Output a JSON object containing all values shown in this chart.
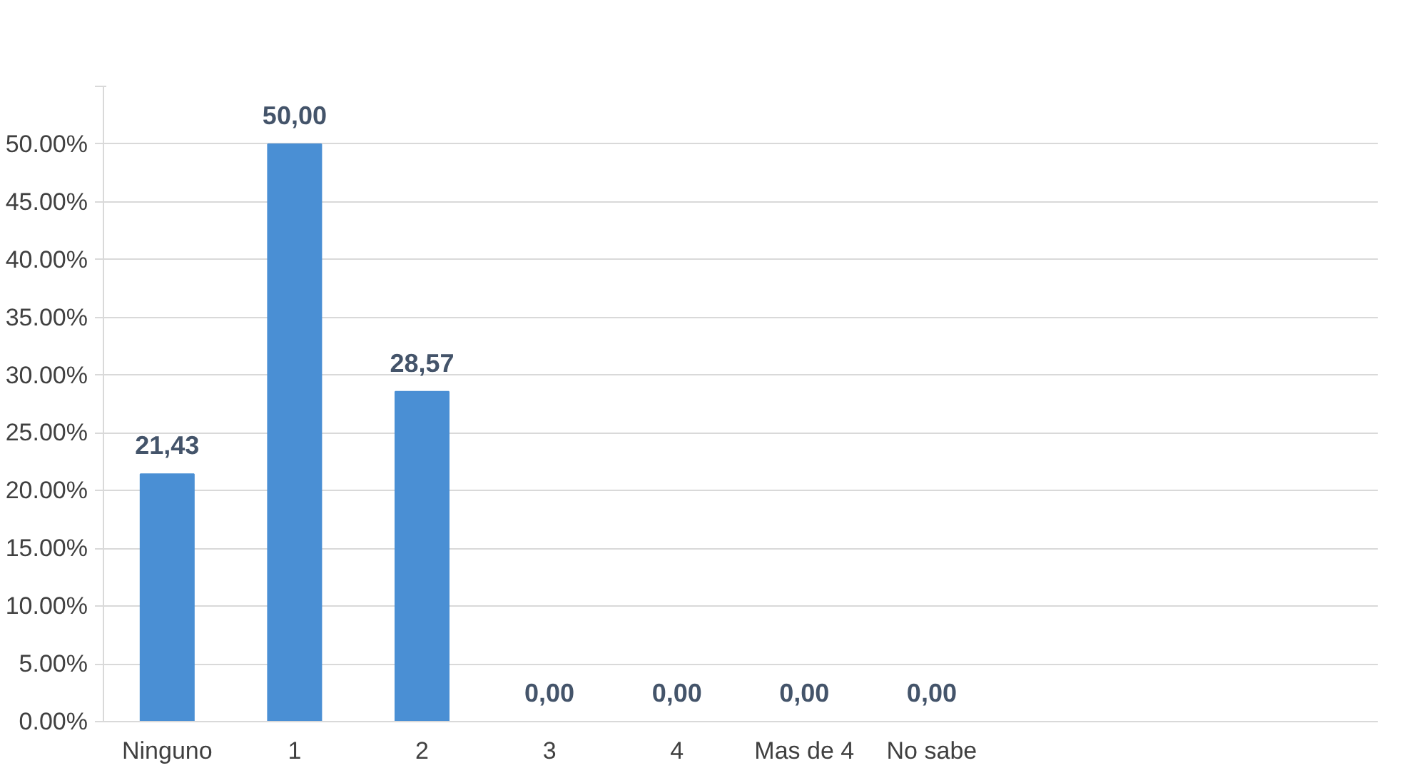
{
  "chart_data": {
    "type": "bar",
    "categories": [
      "Ninguno",
      "1",
      "2",
      "3",
      "4",
      "Mas de 4",
      "No sabe",
      null,
      null,
      null
    ],
    "values": [
      21.43,
      50,
      28.57,
      0,
      0,
      0,
      0,
      null,
      null,
      null
    ],
    "value_labels": [
      "21,43",
      "50,00",
      "28,57",
      "0,00",
      "0,00",
      "0,00",
      "0,00",
      null,
      null,
      null
    ],
    "color": "#4a8fd4",
    "ylim": [
      0,
      55
    ],
    "yticks": [
      {
        "value": 0,
        "label": "0.00%"
      },
      {
        "value": 5,
        "label": "5.00%"
      },
      {
        "value": 10,
        "label": "10.00%"
      },
      {
        "value": 15,
        "label": "15.00%"
      },
      {
        "value": 20,
        "label": "20.00%"
      },
      {
        "value": 25,
        "label": "25.00%"
      },
      {
        "value": 30,
        "label": "30.00%"
      },
      {
        "value": 35,
        "label": "35.00%"
      },
      {
        "value": 40,
        "label": "40.00%"
      },
      {
        "value": 45,
        "label": "45.00%"
      },
      {
        "value": 50,
        "label": "50.00%"
      },
      {
        "value": 55,
        "label": null
      }
    ],
    "grid": "y"
  }
}
